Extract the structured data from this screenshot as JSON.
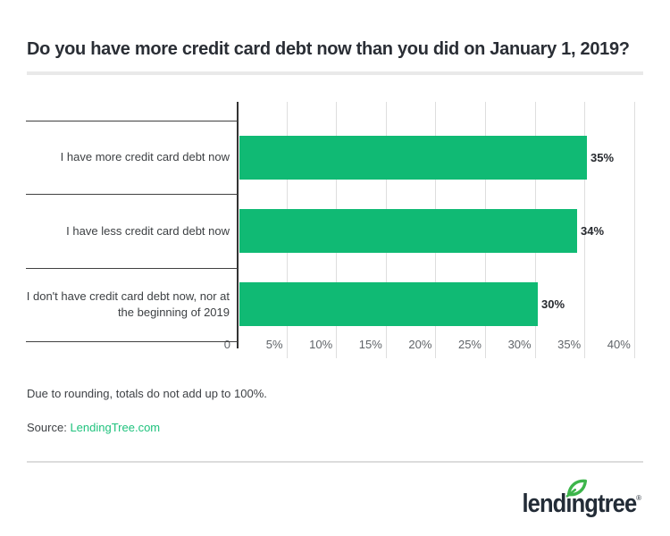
{
  "title": "Do you have more credit card debt now than you did on January 1, 2019?",
  "chart_data": {
    "type": "bar",
    "orientation": "horizontal",
    "title": "Do you have more credit card debt now than you did on January 1, 2019?",
    "categories": [
      "I have more credit card debt now",
      "I have less credit card debt now",
      "I don't have credit card debt now, nor at\nthe beginning of 2019"
    ],
    "values": [
      35,
      34,
      30
    ],
    "value_labels": [
      "35%",
      "34%",
      "30%"
    ],
    "xlabel": "",
    "ylabel": "",
    "xlim": [
      0,
      40
    ],
    "x_ticks": [
      0,
      5,
      10,
      15,
      20,
      25,
      30,
      35,
      40
    ],
    "x_tick_labels": [
      "0",
      "5%",
      "10%",
      "15%",
      "20%",
      "25%",
      "30%",
      "35%",
      "40%"
    ],
    "grid": true,
    "legend": "none",
    "bar_color": "#10ba74"
  },
  "footnote": "Due to rounding, totals do not add up to 100%.",
  "source": {
    "label": "Source:",
    "link_text": "LendingTree.com"
  },
  "logo": {
    "wordmark": "lendingtree",
    "registered_mark": "®"
  },
  "colors": {
    "bar_green": "#10ba74",
    "link_green": "#1fc27d",
    "leaf_green": "#3db54b",
    "title_dark": "#2a2e35"
  }
}
